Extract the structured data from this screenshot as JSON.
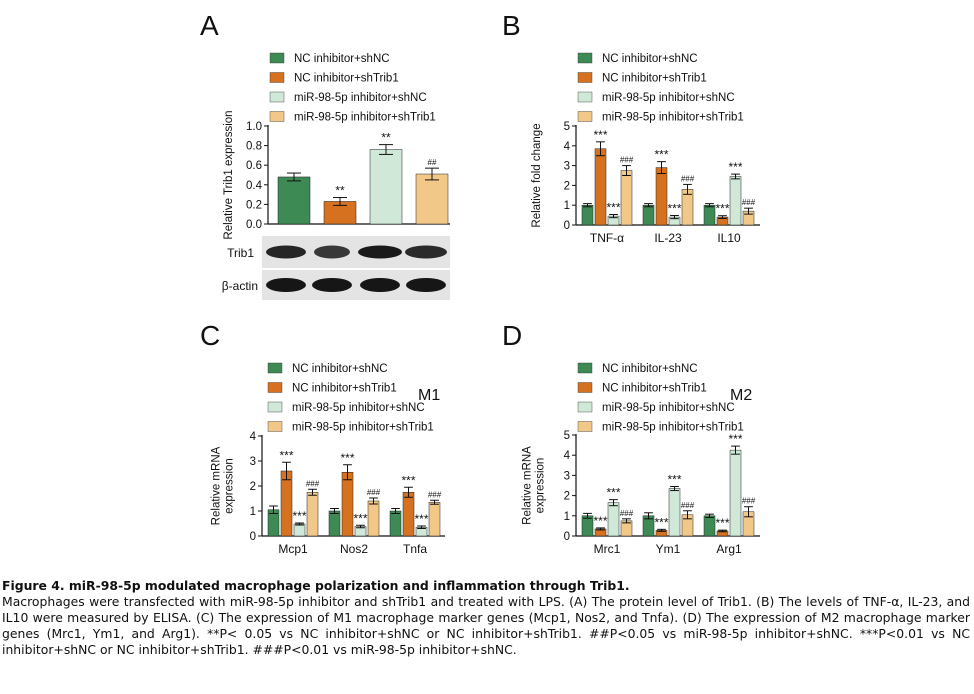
{
  "colors": {
    "nc": "#3d8a55",
    "shtrib1": "#d6721f",
    "inhibitor": "#cfe8d8",
    "both": "#f2c889"
  },
  "legend": [
    "NC inhibitor+shNC",
    "NC inhibitor+shTrib1",
    "miR-98-5p inhibitor+shNC",
    "miR-98-5p inhibitor+shTrib1"
  ],
  "panels": {
    "A": {
      "letter": "A",
      "blot_labels": [
        "Trib1",
        "β-actin"
      ]
    },
    "B": {
      "letter": "B"
    },
    "C": {
      "letter": "C",
      "tag": "M1"
    },
    "D": {
      "letter": "D",
      "tag": "M2"
    }
  },
  "chart_data": [
    {
      "id": "A",
      "type": "bar",
      "ylabel": "Relative Trib1 expression",
      "ylim": [
        0,
        1.0
      ],
      "yticks": [
        "0.0",
        "0.2",
        "0.4",
        "0.6",
        "0.8",
        "1.0"
      ],
      "categories": [
        ""
      ],
      "series": [
        {
          "name": "NC inhibitor+shNC",
          "values": [
            0.48
          ],
          "errors": [
            0.04
          ],
          "marks": [
            ""
          ]
        },
        {
          "name": "NC inhibitor+shTrib1",
          "values": [
            0.23
          ],
          "errors": [
            0.04
          ],
          "marks": [
            "**"
          ]
        },
        {
          "name": "miR-98-5p inhibitor+shNC",
          "values": [
            0.76
          ],
          "errors": [
            0.05
          ],
          "marks": [
            "**"
          ]
        },
        {
          "name": "miR-98-5p inhibitor+shTrib1",
          "values": [
            0.51
          ],
          "errors": [
            0.06
          ],
          "marks": [
            "##"
          ]
        }
      ]
    },
    {
      "id": "B",
      "type": "bar",
      "ylabel": "Relative fold change",
      "ylim": [
        0,
        5
      ],
      "yticks": [
        "0",
        "1",
        "2",
        "3",
        "4",
        "5"
      ],
      "categories": [
        "TNF-α",
        "IL-23",
        "IL10"
      ],
      "series": [
        {
          "name": "NC inhibitor+shNC",
          "values": [
            1.0,
            1.0,
            1.0
          ],
          "errors": [
            0.08,
            0.08,
            0.08
          ],
          "marks": [
            "",
            "",
            ""
          ]
        },
        {
          "name": "NC inhibitor+shTrib1",
          "values": [
            3.85,
            2.9,
            0.4
          ],
          "errors": [
            0.35,
            0.3,
            0.07
          ],
          "marks": [
            "***",
            "***",
            "***"
          ]
        },
        {
          "name": "miR-98-5p inhibitor+shNC",
          "values": [
            0.45,
            0.4,
            2.45
          ],
          "errors": [
            0.08,
            0.08,
            0.12
          ],
          "marks": [
            "***",
            "***",
            "***"
          ]
        },
        {
          "name": "miR-98-5p inhibitor+shTrib1",
          "values": [
            2.75,
            1.8,
            0.7
          ],
          "errors": [
            0.25,
            0.25,
            0.15
          ],
          "marks": [
            "###",
            "###",
            "###"
          ]
        }
      ]
    },
    {
      "id": "C",
      "type": "bar",
      "ylabel": "Relative mRNA\nexpression",
      "ylim": [
        0,
        4
      ],
      "yticks": [
        "0",
        "1",
        "2",
        "3",
        "4"
      ],
      "categories": [
        "Mcp1",
        "Nos2",
        "Tnfa"
      ],
      "series": [
        {
          "name": "NC inhibitor+shNC",
          "values": [
            1.05,
            1.0,
            1.0
          ],
          "errors": [
            0.15,
            0.1,
            0.1
          ],
          "marks": [
            "",
            "",
            ""
          ]
        },
        {
          "name": "NC inhibitor+shTrib1",
          "values": [
            2.6,
            2.55,
            1.75
          ],
          "errors": [
            0.35,
            0.3,
            0.2
          ],
          "marks": [
            "***",
            "***",
            "***"
          ]
        },
        {
          "name": "miR-98-5p inhibitor+shNC",
          "values": [
            0.48,
            0.38,
            0.35
          ],
          "errors": [
            0.04,
            0.05,
            0.05
          ],
          "marks": [
            "***",
            "***",
            "***"
          ]
        },
        {
          "name": "miR-98-5p inhibitor+shTrib1",
          "values": [
            1.75,
            1.4,
            1.35
          ],
          "errors": [
            0.12,
            0.12,
            0.08
          ],
          "marks": [
            "###",
            "###",
            "###"
          ]
        }
      ]
    },
    {
      "id": "D",
      "type": "bar",
      "ylabel": "Relative mRNA\nexpression",
      "ylim": [
        0,
        5
      ],
      "yticks": [
        "0",
        "1",
        "2",
        "3",
        "4",
        "5"
      ],
      "categories": [
        "Mrc1",
        "Ym1",
        "Arg1"
      ],
      "series": [
        {
          "name": "NC inhibitor+shNC",
          "values": [
            1.0,
            1.0,
            1.0
          ],
          "errors": [
            0.12,
            0.15,
            0.08
          ],
          "marks": [
            "",
            "",
            ""
          ]
        },
        {
          "name": "NC inhibitor+shTrib1",
          "values": [
            0.35,
            0.28,
            0.25
          ],
          "errors": [
            0.05,
            0.05,
            0.04
          ],
          "marks": [
            "***",
            "***",
            "***"
          ]
        },
        {
          "name": "miR-98-5p inhibitor+shNC",
          "values": [
            1.65,
            2.35,
            4.25
          ],
          "errors": [
            0.15,
            0.1,
            0.2
          ],
          "marks": [
            "***",
            "***",
            "***"
          ]
        },
        {
          "name": "miR-98-5p inhibitor+shTrib1",
          "values": [
            0.75,
            1.05,
            1.2
          ],
          "errors": [
            0.1,
            0.2,
            0.25
          ],
          "marks": [
            "###",
            "###",
            "###"
          ]
        }
      ]
    }
  ],
  "caption": {
    "title": "Figure 4. miR-98-5p modulated macrophage polarization and inflammation through Trib1.",
    "body": "Macrophages were transfected with miR-98-5p inhibitor and shTrib1 and treated with LPS. (A) The protein level of Trib1. (B) The levels of TNF-α, IL-23, and IL10 were measured by ELISA. (C) The expression of M1 macrophage marker genes (Mcp1, Nos2, and Tnfa). (D) The expression of M2 macrophage marker genes (Mrc1, Ym1, and Arg1). **P< 0.05 vs NC inhibitor+shNC or NC inhibitor+shTrib1. ##P<0.05 vs miR-98-5p inhibitor+shNC. ***P<0.01 vs NC inhibitor+shNC or NC inhibitor+shTrib1. ###P<0.01 vs miR-98-5p inhibitor+shNC."
  }
}
